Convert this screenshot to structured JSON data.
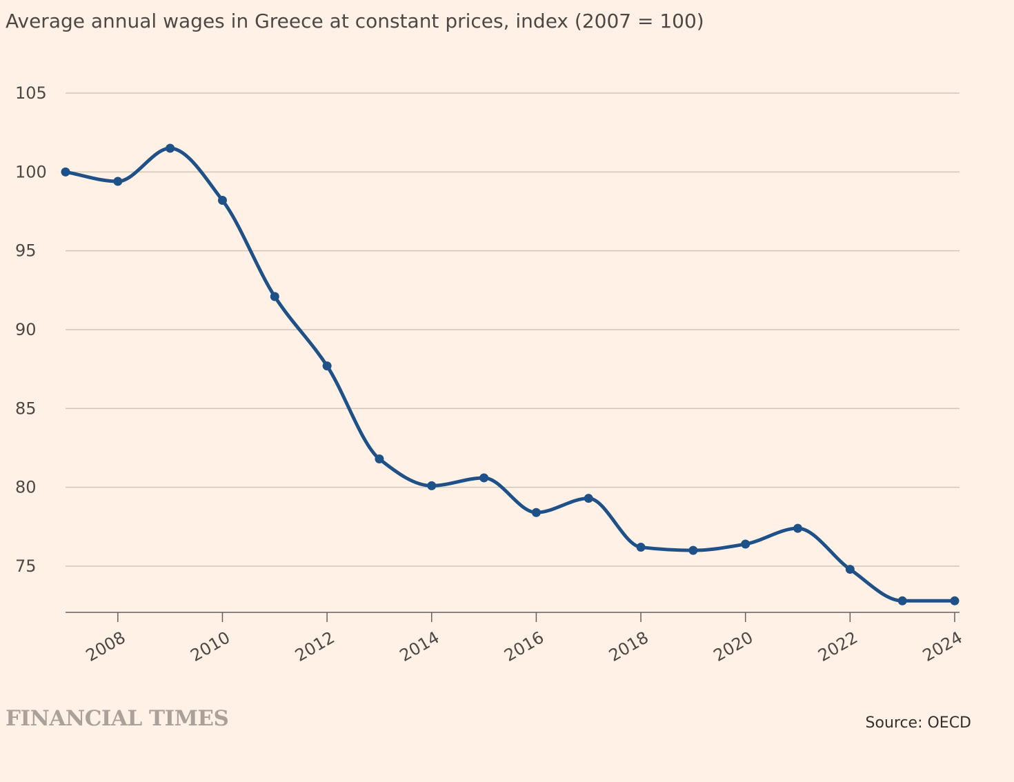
{
  "title": "Average annual wages in Greece at constant prices, index (2007 = 100)",
  "source": "Source: OECD",
  "brand": "FINANCIAL TIMES",
  "colors": {
    "background": "#FFF1E5",
    "line": "#1F5189",
    "grid": "#CEC6B9",
    "axis": "#66605C"
  },
  "chart_data": {
    "type": "line",
    "x": [
      2007,
      2008,
      2009,
      2010,
      2011,
      2012,
      2013,
      2014,
      2015,
      2016,
      2017,
      2018,
      2019,
      2020,
      2021,
      2022,
      2023,
      2024
    ],
    "series": [
      {
        "values": [
          100,
          99.4,
          101.5,
          98.2,
          92.1,
          87.7,
          81.8,
          80.1,
          80.6,
          78.4,
          79.3,
          76.2,
          76.0,
          76.4,
          77.4,
          74.8,
          72.8,
          72.8
        ]
      }
    ],
    "xlim": [
      2007,
      2024
    ],
    "ylim": [
      72.1,
      105
    ],
    "y_ticks": [
      75,
      80,
      85,
      90,
      95,
      100,
      105
    ],
    "x_ticks": [
      2008,
      2010,
      2012,
      2014,
      2016,
      2018,
      2020,
      2022,
      2024
    ],
    "x_tick_labels": [
      "2008",
      "2010",
      "2012",
      "2014",
      "2016",
      "2018",
      "2020",
      "2022",
      "2024"
    ],
    "y_tick_labels": [
      "75",
      "80",
      "85",
      "90",
      "95",
      "100",
      "105"
    ],
    "grid": true,
    "legend": "none"
  }
}
